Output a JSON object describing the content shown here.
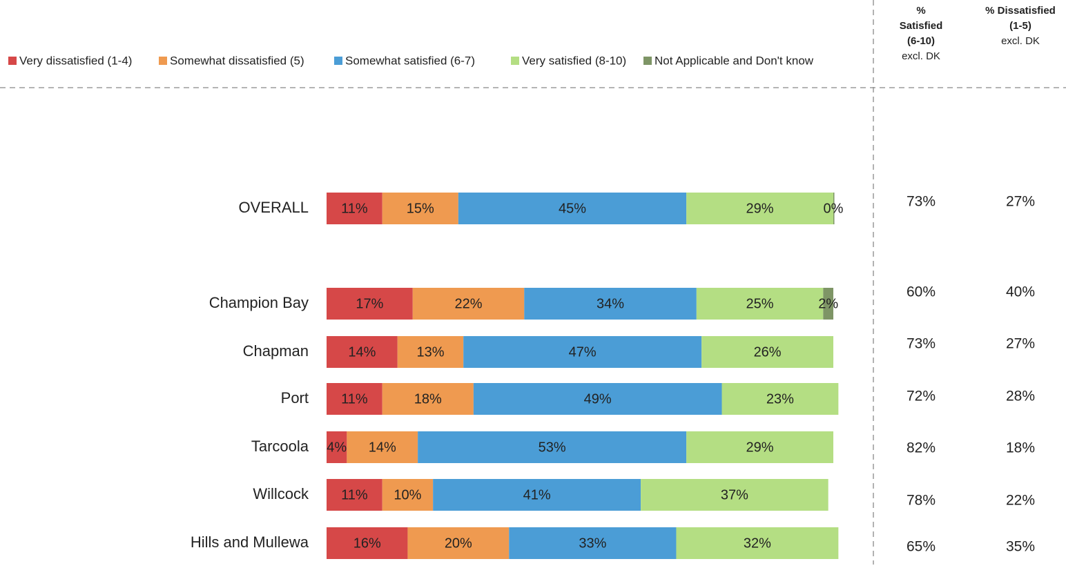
{
  "chart_data": {
    "type": "bar",
    "orientation": "horizontal",
    "stacked": true,
    "categories": [
      "OVERALL",
      "Champion Bay",
      "Chapman",
      "Port",
      "Tarcoola",
      "Willcock",
      "Hills and Mullewa"
    ],
    "xlim": [
      0,
      100
    ],
    "series": [
      {
        "name": "Very dissatisfied (1-4)",
        "color": "#d64848",
        "values": [
          11,
          17,
          14,
          11,
          4,
          11,
          16
        ],
        "value_labels": [
          "11%",
          "17%",
          "14%",
          "11%",
          "4%",
          "11%",
          "16%"
        ]
      },
      {
        "name": "Somewhat dissatisfied (5)",
        "color": "#ef9a50",
        "values": [
          15,
          22,
          13,
          18,
          14,
          10,
          20
        ],
        "value_labels": [
          "15%",
          "22%",
          "13%",
          "18%",
          "14%",
          "10%",
          "20%"
        ]
      },
      {
        "name": "Somewhat satisfied (6-7)",
        "color": "#4b9dd6",
        "values": [
          45,
          34,
          47,
          49,
          53,
          41,
          33
        ],
        "value_labels": [
          "45%",
          "34%",
          "47%",
          "49%",
          "53%",
          "41%",
          "33%"
        ]
      },
      {
        "name": "Very satisfied (8-10)",
        "color": "#b4de83",
        "values": [
          29,
          25,
          26,
          23,
          29,
          37,
          32
        ],
        "value_labels": [
          "29%",
          "25%",
          "26%",
          "23%",
          "29%",
          "37%",
          "32%"
        ]
      },
      {
        "name": "Not Applicable and Don't know",
        "color": "#7e9566",
        "values": [
          0,
          2,
          null,
          null,
          null,
          null,
          null
        ],
        "value_labels": [
          "0%",
          "2%",
          null,
          null,
          null,
          null,
          null
        ]
      }
    ],
    "side_columns": [
      {
        "header": [
          "%",
          "Satisfied",
          "(6-10)"
        ],
        "note": "excl. DK",
        "values": [
          73,
          60,
          73,
          72,
          82,
          78,
          65
        ],
        "value_labels": [
          "73%",
          "60%",
          "73%",
          "72%",
          "82%",
          "78%",
          "65%"
        ]
      },
      {
        "header": [
          "% Dissatisfied",
          "(1-5)"
        ],
        "note": "excl. DK",
        "values": [
          27,
          40,
          27,
          28,
          18,
          22,
          35
        ],
        "value_labels": [
          "27%",
          "40%",
          "27%",
          "28%",
          "18%",
          "22%",
          "35%"
        ]
      }
    ]
  }
}
